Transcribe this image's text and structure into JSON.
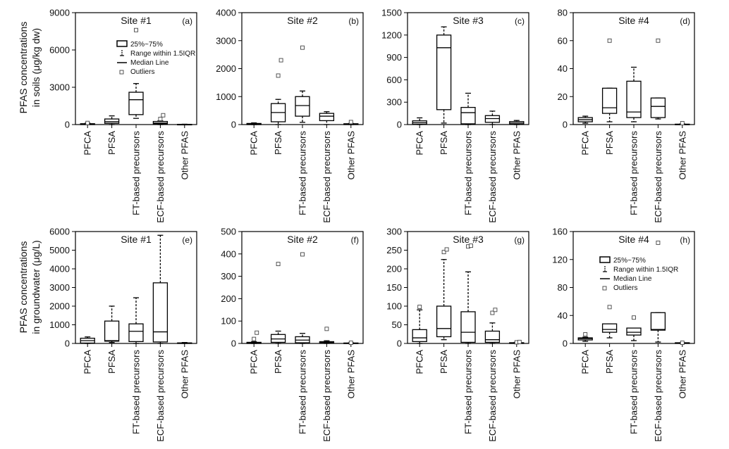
{
  "figure": {
    "ylabel_row1": [
      "PFAS concentrations",
      "in soils (μg/kg dw)"
    ],
    "ylabel_row2": [
      "PFAS concentrations",
      "in groundwater (μg/L)"
    ]
  },
  "legend": {
    "box": "25%~75%",
    "range": "Range within 1.5IQR",
    "median": "Median Line",
    "outliers": "Outliers"
  },
  "chart_data": [
    {
      "type": "box",
      "panel": "(a)",
      "title": "Site #1",
      "ylim": [
        0,
        9000
      ],
      "yticks": [
        0,
        3000,
        6000,
        9000
      ],
      "categories": [
        "PFCA",
        "PFSA",
        "FT-based precursors",
        "ECF-based precursors",
        "Other PFAS"
      ],
      "boxes": [
        {
          "wlo": 0,
          "q1": 0,
          "med": 30,
          "q3": 70,
          "whi": 120,
          "outliers": [
            130
          ]
        },
        {
          "wlo": 0,
          "q1": 100,
          "med": 230,
          "q3": 450,
          "whi": 700,
          "outliers": []
        },
        {
          "wlo": 500,
          "q1": 800,
          "med": 2000,
          "q3": 2600,
          "whi": 3300,
          "outliers": [
            7600
          ]
        },
        {
          "wlo": 0,
          "q1": 60,
          "med": 120,
          "q3": 250,
          "whi": 300,
          "outliers": [
            450,
            750
          ]
        },
        {
          "wlo": 0,
          "q1": 0,
          "med": 0,
          "q3": 20,
          "whi": 30,
          "outliers": []
        }
      ]
    },
    {
      "type": "box",
      "panel": "(b)",
      "title": "Site #2",
      "ylim": [
        0,
        4000
      ],
      "yticks": [
        0,
        1000,
        2000,
        3000,
        4000
      ],
      "categories": [
        "PFCA",
        "PFSA",
        "FT-based precursors",
        "ECF-based precursors",
        "Other PFAS"
      ],
      "boxes": [
        {
          "wlo": 0,
          "q1": 0,
          "med": 20,
          "q3": 40,
          "whi": 60,
          "outliers": []
        },
        {
          "wlo": 0,
          "q1": 100,
          "med": 430,
          "q3": 750,
          "whi": 900,
          "outliers": [
            1750,
            2300
          ]
        },
        {
          "wlo": 80,
          "q1": 300,
          "med": 680,
          "q3": 1000,
          "whi": 1200,
          "outliers": [
            2750
          ]
        },
        {
          "wlo": 0,
          "q1": 140,
          "med": 300,
          "q3": 400,
          "whi": 460,
          "outliers": []
        },
        {
          "wlo": 0,
          "q1": 0,
          "med": 10,
          "q3": 30,
          "whi": 40,
          "outliers": [
            90
          ]
        }
      ]
    },
    {
      "type": "box",
      "panel": "(c)",
      "title": "Site #3",
      "ylim": [
        0,
        1500
      ],
      "yticks": [
        0,
        300,
        600,
        900,
        1200,
        1500
      ],
      "categories": [
        "PFCA",
        "PFSA",
        "FT-based precursors",
        "ECF-based precursors",
        "Other PFAS"
      ],
      "boxes": [
        {
          "wlo": 0,
          "q1": 5,
          "med": 25,
          "q3": 50,
          "whi": 90,
          "outliers": []
        },
        {
          "wlo": 20,
          "q1": 200,
          "med": 1030,
          "q3": 1200,
          "whi": 1310,
          "outliers": []
        },
        {
          "wlo": 0,
          "q1": 10,
          "med": 160,
          "q3": 230,
          "whi": 420,
          "outliers": []
        },
        {
          "wlo": 0,
          "q1": 30,
          "med": 80,
          "q3": 120,
          "whi": 180,
          "outliers": []
        },
        {
          "wlo": 0,
          "q1": 5,
          "med": 20,
          "q3": 40,
          "whi": 55,
          "outliers": []
        }
      ]
    },
    {
      "type": "box",
      "panel": "(d)",
      "title": "Site #4",
      "ylim": [
        0,
        80
      ],
      "yticks": [
        0,
        20,
        40,
        60,
        80
      ],
      "categories": [
        "PFCA",
        "PFSA",
        "FT-based precursors",
        "ECF-based precursors",
        "Other PFAS"
      ],
      "boxes": [
        {
          "wlo": 1,
          "q1": 2,
          "med": 3.5,
          "q3": 5,
          "whi": 6,
          "outliers": []
        },
        {
          "wlo": 2,
          "q1": 8,
          "med": 12,
          "q3": 26,
          "whi": 26,
          "outliers": [
            60
          ]
        },
        {
          "wlo": 2,
          "q1": 5,
          "med": 9,
          "q3": 31,
          "whi": 41,
          "outliers": []
        },
        {
          "wlo": 4,
          "q1": 5,
          "med": 13,
          "q3": 19,
          "whi": 19,
          "outliers": [
            60
          ]
        },
        {
          "wlo": 0,
          "q1": 0,
          "med": 0,
          "q3": 0.3,
          "whi": 0.5,
          "outliers": [
            1
          ]
        }
      ]
    },
    {
      "type": "box",
      "panel": "(e)",
      "title": "Site #1",
      "ylim": [
        0,
        6000
      ],
      "yticks": [
        0,
        1000,
        2000,
        3000,
        4000,
        5000,
        6000
      ],
      "categories": [
        "PFCA",
        "PFSA",
        "FT-based precursors",
        "ECF-based precursors",
        "Other PFAS"
      ],
      "boxes": [
        {
          "wlo": 0,
          "q1": 20,
          "med": 150,
          "q3": 280,
          "whi": 350,
          "outliers": []
        },
        {
          "wlo": 50,
          "q1": 120,
          "med": 150,
          "q3": 1200,
          "whi": 2000,
          "outliers": []
        },
        {
          "wlo": 0,
          "q1": 100,
          "med": 650,
          "q3": 1050,
          "whi": 2450,
          "outliers": []
        },
        {
          "wlo": 0,
          "q1": 80,
          "med": 620,
          "q3": 3250,
          "whi": 5800,
          "outliers": []
        },
        {
          "wlo": 0,
          "q1": 0,
          "med": 10,
          "q3": 30,
          "whi": 50,
          "outliers": []
        }
      ]
    },
    {
      "type": "box",
      "panel": "(f)",
      "title": "Site #2",
      "ylim": [
        0,
        500
      ],
      "yticks": [
        0,
        100,
        200,
        300,
        400,
        500
      ],
      "categories": [
        "PFCA",
        "PFSA",
        "FT-based precursors",
        "ECF-based precursors",
        "Other PFAS"
      ],
      "boxes": [
        {
          "wlo": 0,
          "q1": 0,
          "med": 2,
          "q3": 5,
          "whi": 8,
          "outliers": [
            20,
            48
          ]
        },
        {
          "wlo": 0,
          "q1": 5,
          "med": 20,
          "q3": 40,
          "whi": 55,
          "outliers": [
            355
          ]
        },
        {
          "wlo": 0,
          "q1": 3,
          "med": 15,
          "q3": 30,
          "whi": 45,
          "outliers": [
            398
          ]
        },
        {
          "wlo": 0,
          "q1": 2,
          "med": 5,
          "q3": 8,
          "whi": 12,
          "outliers": [
            65
          ]
        },
        {
          "wlo": 0,
          "q1": 0,
          "med": 1,
          "q3": 2,
          "whi": 3,
          "outliers": [
            3
          ]
        }
      ]
    },
    {
      "type": "box",
      "panel": "(g)",
      "title": "Site #3",
      "ylim": [
        0,
        300
      ],
      "yticks": [
        0,
        50,
        100,
        150,
        200,
        250,
        300
      ],
      "categories": [
        "PFCA",
        "PFSA",
        "FT-based precursors",
        "ECF-based precursors",
        "Other PFAS"
      ],
      "boxes": [
        {
          "wlo": 0,
          "q1": 5,
          "med": 15,
          "q3": 37,
          "whi": 90,
          "outliers": [
            98
          ]
        },
        {
          "wlo": 10,
          "q1": 18,
          "med": 40,
          "q3": 100,
          "whi": 225,
          "outliers": [
            245,
            252
          ]
        },
        {
          "wlo": 0,
          "q1": 3,
          "med": 30,
          "q3": 85,
          "whi": 192,
          "outliers": [
            260,
            262
          ]
        },
        {
          "wlo": 0,
          "q1": 3,
          "med": 10,
          "q3": 33,
          "whi": 55,
          "outliers": [
            82,
            90
          ]
        },
        {
          "wlo": 0,
          "q1": 0,
          "med": 1,
          "q3": 2,
          "whi": 3,
          "outliers": [
            3,
            4
          ]
        }
      ]
    },
    {
      "type": "box",
      "panel": "(h)",
      "title": "Site #4",
      "ylim": [
        0,
        160
      ],
      "yticks": [
        0,
        40,
        80,
        120,
        160
      ],
      "categories": [
        "PFCA",
        "PFSA",
        "FT-based precursors",
        "ECF-based precursors",
        "Other PFAS"
      ],
      "boxes": [
        {
          "wlo": 3,
          "q1": 5,
          "med": 7,
          "q3": 8,
          "whi": 9,
          "outliers": [
            13
          ]
        },
        {
          "wlo": 8,
          "q1": 16,
          "med": 20,
          "q3": 28,
          "whi": 28,
          "outliers": [
            52
          ]
        },
        {
          "wlo": 4,
          "q1": 12,
          "med": 16,
          "q3": 22,
          "whi": 22,
          "outliers": [
            37
          ]
        },
        {
          "wlo": 2,
          "q1": 19,
          "med": 20,
          "q3": 44,
          "whi": 44,
          "outliers": [
            144
          ]
        },
        {
          "wlo": 0,
          "q1": 0,
          "med": 0.5,
          "q3": 1,
          "whi": 1,
          "outliers": [
            1
          ]
        }
      ]
    }
  ]
}
